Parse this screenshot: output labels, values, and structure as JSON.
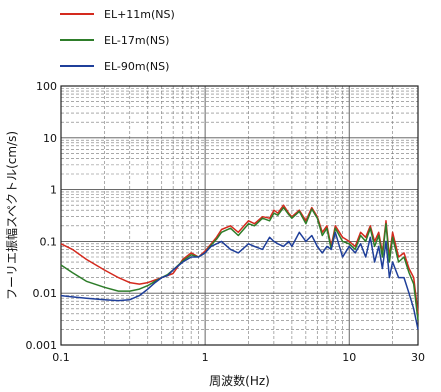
{
  "chart_data": {
    "type": "line",
    "xlabel": "周波数(Hz)",
    "ylabel": "フーリエ振幅スペクトル(cm/s)",
    "xscale": "log",
    "yscale": "log",
    "xlim": [
      0.1,
      30
    ],
    "ylim": [
      0.001,
      100
    ],
    "grid": true,
    "legend_position": "top-left",
    "x_tick_labels": [
      "0.1",
      "1",
      "10",
      "30"
    ],
    "y_tick_labels": [
      "0.001",
      "0.01",
      "0.1",
      "1",
      "10",
      "100"
    ],
    "series": [
      {
        "name": "EL+11m(NS)",
        "color": "#d42a1e",
        "x": [
          0.1,
          0.12,
          0.15,
          0.2,
          0.25,
          0.3,
          0.35,
          0.4,
          0.45,
          0.5,
          0.55,
          0.6,
          0.7,
          0.8,
          0.9,
          1.0,
          1.1,
          1.2,
          1.3,
          1.5,
          1.7,
          2.0,
          2.2,
          2.5,
          2.8,
          3.0,
          3.2,
          3.5,
          3.8,
          4.0,
          4.5,
          5.0,
          5.5,
          6.0,
          6.5,
          7.0,
          7.5,
          8.0,
          9.0,
          10.0,
          11.0,
          12.0,
          13.0,
          14.0,
          15.0,
          16.0,
          17.0,
          18.0,
          19.0,
          20.0,
          22.0,
          24.0,
          26.0,
          28.0,
          30.0
        ],
        "y": [
          0.09,
          0.07,
          0.045,
          0.028,
          0.02,
          0.016,
          0.015,
          0.016,
          0.018,
          0.02,
          0.022,
          0.024,
          0.045,
          0.06,
          0.05,
          0.065,
          0.09,
          0.12,
          0.17,
          0.2,
          0.15,
          0.25,
          0.22,
          0.3,
          0.28,
          0.4,
          0.35,
          0.5,
          0.35,
          0.3,
          0.4,
          0.25,
          0.45,
          0.3,
          0.15,
          0.2,
          0.08,
          0.2,
          0.12,
          0.1,
          0.08,
          0.15,
          0.12,
          0.2,
          0.1,
          0.15,
          0.06,
          0.25,
          0.05,
          0.15,
          0.05,
          0.06,
          0.03,
          0.02,
          0.004
        ]
      },
      {
        "name": "EL-17m(NS)",
        "color": "#2e7d2a",
        "x": [
          0.1,
          0.12,
          0.15,
          0.2,
          0.25,
          0.3,
          0.35,
          0.4,
          0.45,
          0.5,
          0.55,
          0.6,
          0.7,
          0.8,
          0.9,
          1.0,
          1.1,
          1.2,
          1.3,
          1.5,
          1.7,
          2.0,
          2.2,
          2.5,
          2.8,
          3.0,
          3.2,
          3.5,
          3.8,
          4.0,
          4.5,
          5.0,
          5.5,
          6.0,
          6.5,
          7.0,
          7.5,
          8.0,
          9.0,
          10.0,
          11.0,
          12.0,
          13.0,
          14.0,
          15.0,
          16.0,
          17.0,
          18.0,
          19.0,
          20.0,
          22.0,
          24.0,
          26.0,
          28.0,
          30.0
        ],
        "y": [
          0.035,
          0.025,
          0.017,
          0.013,
          0.011,
          0.011,
          0.012,
          0.014,
          0.017,
          0.02,
          0.023,
          0.028,
          0.042,
          0.055,
          0.05,
          0.06,
          0.085,
          0.11,
          0.15,
          0.18,
          0.13,
          0.22,
          0.2,
          0.28,
          0.25,
          0.35,
          0.32,
          0.45,
          0.33,
          0.28,
          0.38,
          0.22,
          0.42,
          0.28,
          0.13,
          0.18,
          0.07,
          0.18,
          0.1,
          0.09,
          0.07,
          0.13,
          0.1,
          0.18,
          0.08,
          0.13,
          0.05,
          0.22,
          0.04,
          0.12,
          0.04,
          0.05,
          0.025,
          0.015,
          0.003
        ]
      },
      {
        "name": "EL-90m(NS)",
        "color": "#1f3f9a",
        "x": [
          0.1,
          0.12,
          0.15,
          0.2,
          0.25,
          0.3,
          0.35,
          0.4,
          0.45,
          0.5,
          0.55,
          0.6,
          0.7,
          0.8,
          0.9,
          1.0,
          1.1,
          1.2,
          1.3,
          1.5,
          1.7,
          2.0,
          2.2,
          2.5,
          2.8,
          3.0,
          3.2,
          3.5,
          3.8,
          4.0,
          4.5,
          5.0,
          5.5,
          6.0,
          6.5,
          7.0,
          7.5,
          8.0,
          9.0,
          10.0,
          11.0,
          12.0,
          13.0,
          14.0,
          15.0,
          16.0,
          17.0,
          18.0,
          19.0,
          20.0,
          22.0,
          24.0,
          26.0,
          28.0,
          30.0
        ],
        "y": [
          0.009,
          0.0085,
          0.008,
          0.0075,
          0.0072,
          0.0075,
          0.009,
          0.012,
          0.016,
          0.02,
          0.022,
          0.028,
          0.04,
          0.05,
          0.05,
          0.06,
          0.08,
          0.09,
          0.1,
          0.07,
          0.06,
          0.09,
          0.08,
          0.07,
          0.12,
          0.1,
          0.09,
          0.08,
          0.1,
          0.08,
          0.15,
          0.1,
          0.13,
          0.08,
          0.06,
          0.08,
          0.07,
          0.15,
          0.05,
          0.08,
          0.06,
          0.09,
          0.05,
          0.12,
          0.04,
          0.08,
          0.03,
          0.1,
          0.02,
          0.04,
          0.02,
          0.02,
          0.01,
          0.005,
          0.002
        ]
      }
    ]
  }
}
